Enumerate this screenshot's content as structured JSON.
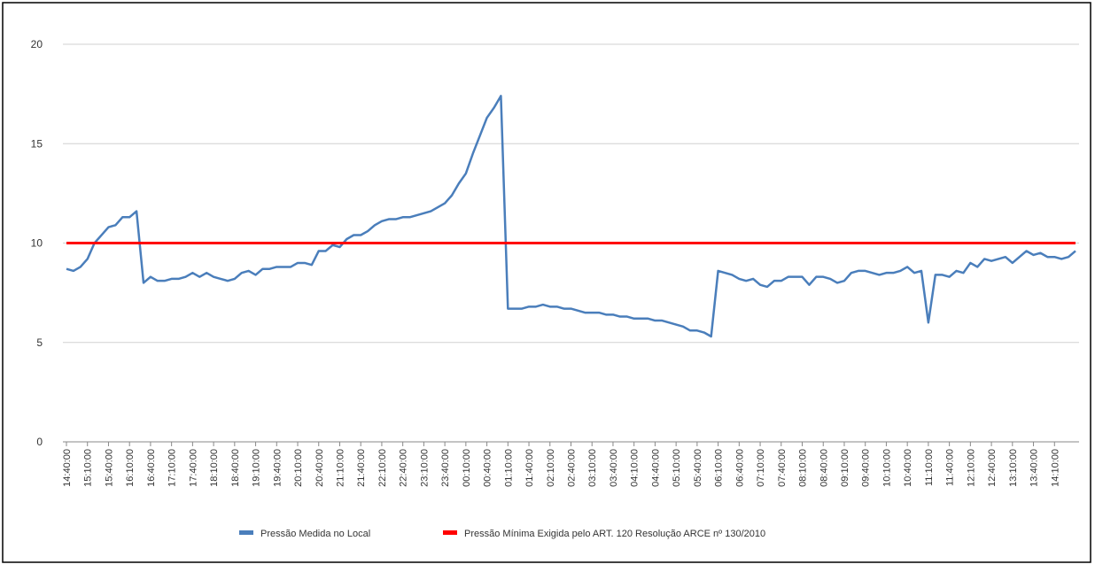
{
  "chart_data": {
    "type": "line",
    "categories": [
      "14:40:00",
      null,
      null,
      "15:10:00",
      null,
      null,
      "15:40:00",
      null,
      null,
      "16:10:00",
      null,
      null,
      "16:40:00",
      null,
      null,
      "17:10:00",
      null,
      null,
      "17:40:00",
      null,
      null,
      "18:10:00",
      null,
      null,
      "18:40:00",
      null,
      null,
      "19:10:00",
      null,
      null,
      "19:40:00",
      null,
      null,
      "20:10:00",
      null,
      null,
      "20:40:00",
      null,
      null,
      "21:10:00",
      null,
      null,
      "21:40:00",
      null,
      null,
      "22:10:00",
      null,
      null,
      "22:40:00",
      null,
      null,
      "23:10:00",
      null,
      null,
      "23:40:00",
      null,
      null,
      "00:10:00",
      null,
      null,
      "00:40:00",
      null,
      null,
      "01:10:00",
      null,
      null,
      "01:40:00",
      null,
      null,
      "02:10:00",
      null,
      null,
      "02:40:00",
      null,
      null,
      "03:10:00",
      null,
      null,
      "03:40:00",
      null,
      null,
      "04:10:00",
      null,
      null,
      "04:40:00",
      null,
      null,
      "05:10:00",
      null,
      null,
      "05:40:00",
      null,
      null,
      "06:10:00",
      null,
      null,
      "06:40:00",
      null,
      null,
      "07:10:00",
      null,
      null,
      "07:40:00",
      null,
      null,
      "08:10:00",
      null,
      null,
      "08:40:00",
      null,
      null,
      "09:10:00",
      null,
      null,
      "09:40:00",
      null,
      null,
      "10:10:00",
      null,
      null,
      "10:40:00",
      null,
      null,
      "11:10:00",
      null,
      null,
      "11:40:00",
      null,
      null,
      "12:10:00",
      null,
      null,
      "12:40:00",
      null,
      null,
      "13:10:00",
      null,
      null,
      "13:40:00",
      null,
      null,
      "14:10:00",
      null,
      null,
      null
    ],
    "series": [
      {
        "name": "Pressão Medida no Local",
        "color": "#4a7ebb",
        "values": [
          8.7,
          8.6,
          8.8,
          9.2,
          10.0,
          10.4,
          10.8,
          10.9,
          11.3,
          11.3,
          11.6,
          8.0,
          8.3,
          8.1,
          8.1,
          8.2,
          8.2,
          8.3,
          8.5,
          8.3,
          8.5,
          8.3,
          8.2,
          8.1,
          8.2,
          8.5,
          8.6,
          8.4,
          8.7,
          8.7,
          8.8,
          8.8,
          8.8,
          9.0,
          9.0,
          8.9,
          9.6,
          9.6,
          9.9,
          9.8,
          10.2,
          10.4,
          10.4,
          10.6,
          10.9,
          11.1,
          11.2,
          11.2,
          11.3,
          11.3,
          11.4,
          11.5,
          11.6,
          11.8,
          12.0,
          12.4,
          13.0,
          13.5,
          14.5,
          15.4,
          16.3,
          16.8,
          17.4,
          6.7,
          6.7,
          6.7,
          6.8,
          6.8,
          6.9,
          6.8,
          6.8,
          6.7,
          6.7,
          6.6,
          6.5,
          6.5,
          6.5,
          6.4,
          6.4,
          6.3,
          6.3,
          6.2,
          6.2,
          6.2,
          6.1,
          6.1,
          6.0,
          5.9,
          5.8,
          5.6,
          5.6,
          5.5,
          5.3,
          8.6,
          8.5,
          8.4,
          8.2,
          8.1,
          8.2,
          7.9,
          7.8,
          8.1,
          8.1,
          8.3,
          8.3,
          8.3,
          7.9,
          8.3,
          8.3,
          8.2,
          8.0,
          8.1,
          8.5,
          8.6,
          8.6,
          8.5,
          8.4,
          8.5,
          8.5,
          8.6,
          8.8,
          8.5,
          8.6,
          6.0,
          8.4,
          8.4,
          8.3,
          8.6,
          8.5,
          9.0,
          8.8,
          9.2,
          9.1,
          9.2,
          9.3,
          9.0,
          9.3,
          9.6,
          9.4,
          9.5,
          9.3,
          9.3,
          9.2,
          9.3,
          9.6
        ]
      },
      {
        "name": "Pressão Mínima Exigida pelo ART. 120 Resolução ARCE nº 130/2010",
        "color": "#ff0000",
        "values": [
          10,
          10,
          10,
          10,
          10,
          10,
          10,
          10,
          10,
          10,
          10,
          10,
          10,
          10,
          10,
          10,
          10,
          10,
          10,
          10,
          10,
          10,
          10,
          10,
          10,
          10,
          10,
          10,
          10,
          10,
          10,
          10,
          10,
          10,
          10,
          10,
          10,
          10,
          10,
          10,
          10,
          10,
          10,
          10,
          10,
          10,
          10,
          10,
          10,
          10,
          10,
          10,
          10,
          10,
          10,
          10,
          10,
          10,
          10,
          10,
          10,
          10,
          10,
          10,
          10,
          10,
          10,
          10,
          10,
          10,
          10,
          10,
          10,
          10,
          10,
          10,
          10,
          10,
          10,
          10,
          10,
          10,
          10,
          10,
          10,
          10,
          10,
          10,
          10,
          10,
          10,
          10,
          10,
          10,
          10,
          10,
          10,
          10,
          10,
          10,
          10,
          10,
          10,
          10,
          10,
          10,
          10,
          10,
          10,
          10,
          10,
          10,
          10,
          10,
          10,
          10,
          10,
          10,
          10,
          10,
          10,
          10,
          10,
          10,
          10,
          10,
          10,
          10,
          10,
          10,
          10,
          10,
          10,
          10,
          10,
          10,
          10,
          10,
          10,
          10,
          10,
          10,
          10,
          10,
          10
        ]
      }
    ],
    "ylim": [
      0,
      20
    ],
    "yticks": [
      0,
      5,
      10,
      15,
      20
    ],
    "grid": true,
    "legend": "bottom"
  }
}
